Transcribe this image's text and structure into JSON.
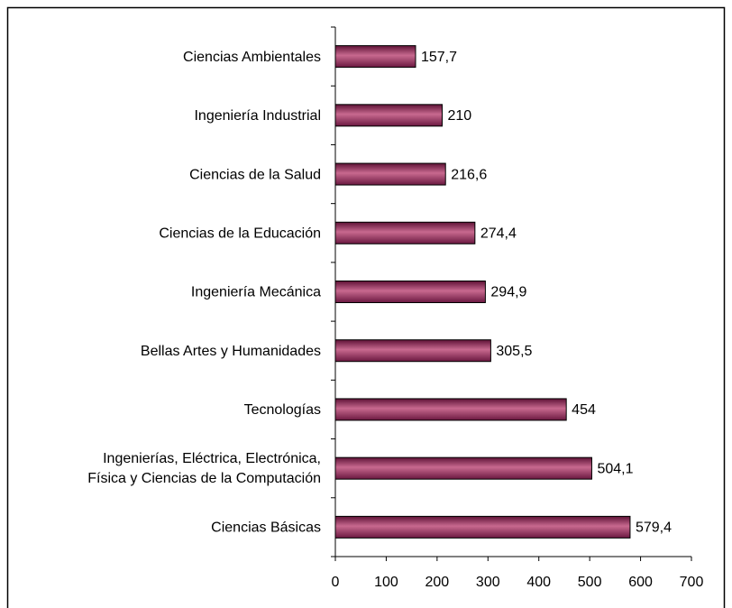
{
  "chart_data": {
    "type": "barh",
    "categories": [
      "Ciencias Ambientales",
      "Ingeniería Industrial",
      "Ciencias de la Salud",
      "Ciencias de la Educación",
      "Ingeniería Mecánica",
      "Bellas Artes y Humanidades",
      "Tecnologías",
      "Ingenierías, Eléctrica, Electrónica,\nFísica y Ciencias de la Computación",
      "Ciencias Básicas"
    ],
    "values": [
      157.7,
      210,
      216.6,
      274.4,
      294.9,
      305.5,
      454,
      504.1,
      579.4
    ],
    "value_labels": [
      "157,7",
      "210",
      "216,6",
      "274,4",
      "294,9",
      "305,5",
      "454",
      "504,1",
      "579,4"
    ],
    "color": "#8b2252",
    "xlim": [
      0,
      700
    ],
    "xticks": [
      0,
      100,
      200,
      300,
      400,
      500,
      600,
      700
    ]
  }
}
